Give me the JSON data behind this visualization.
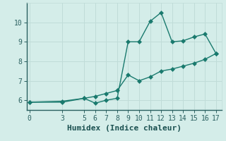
{
  "xlabel": "Humidex (Indice chaleur)",
  "ylabel": "",
  "bg_color": "#d4ede9",
  "line_color": "#1a7a6e",
  "grid_color": "#c0dcd8",
  "upper_x": [
    0,
    3,
    5,
    6,
    7,
    8,
    9,
    10,
    11,
    12,
    13,
    14,
    15,
    16,
    17
  ],
  "upper_y": [
    5.9,
    5.9,
    6.1,
    5.85,
    6.0,
    6.1,
    9.0,
    9.0,
    10.05,
    10.5,
    9.0,
    9.05,
    9.25,
    9.4,
    8.4
  ],
  "lower_x": [
    0,
    3,
    5,
    6,
    7,
    8,
    9,
    10,
    11,
    12,
    13,
    14,
    15,
    16,
    17
  ],
  "lower_y": [
    5.9,
    5.95,
    6.1,
    6.2,
    6.35,
    6.5,
    7.3,
    7.0,
    7.2,
    7.5,
    7.6,
    7.75,
    7.9,
    8.1,
    8.4
  ],
  "xlim": [
    -0.2,
    17.5
  ],
  "ylim": [
    5.5,
    11.0
  ],
  "xticks": [
    0,
    3,
    5,
    6,
    7,
    8,
    9,
    10,
    11,
    12,
    13,
    14,
    15,
    16,
    17
  ],
  "yticks": [
    6,
    7,
    8,
    9,
    10
  ],
  "marker_size": 3,
  "line_width": 1.0,
  "font_size": 7
}
